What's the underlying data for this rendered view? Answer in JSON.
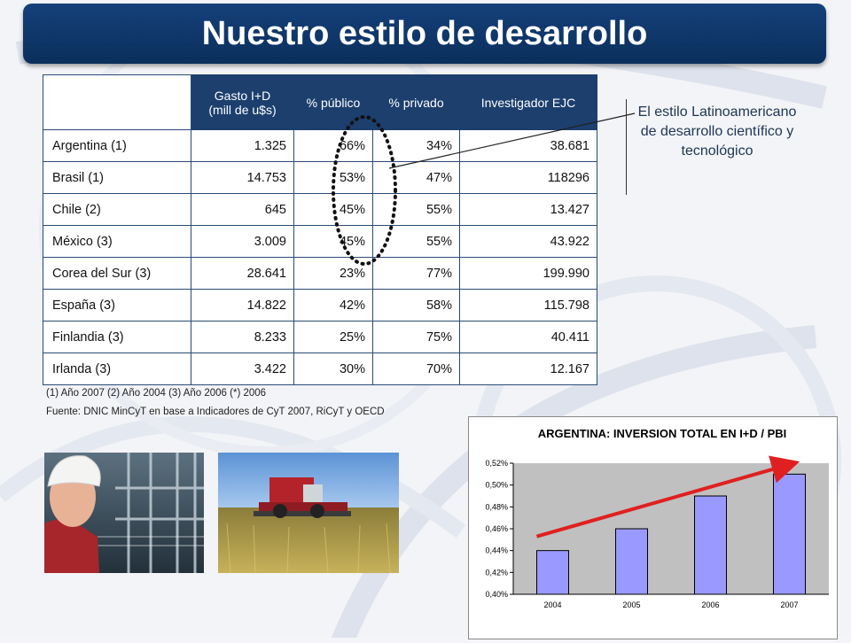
{
  "title": "Nuestro estilo de desarrollo",
  "table": {
    "headers": [
      "",
      "Gasto I+D\n(mill de u$s)",
      "% público",
      "% privado",
      "Investigador EJC"
    ],
    "rows": [
      [
        "Argentina (1)",
        "1.325",
        "66%",
        "34%",
        "38.681"
      ],
      [
        "Brasil (1)",
        "14.753",
        "53%",
        "47%",
        "118296"
      ],
      [
        "Chile (2)",
        "645",
        "45%",
        "55%",
        "13.427"
      ],
      [
        "México (3)",
        "3.009",
        "45%",
        "55%",
        "43.922"
      ],
      [
        "Corea del Sur (3)",
        "28.641",
        "23%",
        "77%",
        "199.990"
      ],
      [
        "España (3)",
        "14.822",
        "42%",
        "58%",
        "115.798"
      ],
      [
        "Finlandia (3)",
        "8.233",
        "25%",
        "75%",
        "40.411"
      ],
      [
        "Irlanda (3)",
        "3.422",
        "30%",
        "70%",
        "12.167"
      ]
    ]
  },
  "notes": {
    "years": "(1) Año 2007 (2) Año 2004 (3) Año 2006 (*) 2006",
    "source": "Fuente: DNIC MinCyT en base a Indicadores de CyT 2007, RiCyT y OECD"
  },
  "annotation": "El estilo Latinoamericano de desarrollo científico y tecnológico",
  "photos": {
    "left": "industrial-worker-photo",
    "right": "harvester-photo"
  },
  "colors": {
    "title_bg": "#0b2f5c",
    "header_bg": "#1c3f6e",
    "bar_fill": "#9999ff",
    "trend_arrow": "#e02020",
    "plot_bg": "#c0c0c0"
  },
  "chart_data": {
    "type": "bar",
    "title": "ARGENTINA: INVERSION TOTAL EN I+D / PBI",
    "categories": [
      "2004",
      "2005",
      "2006",
      "2007"
    ],
    "values": [
      0.44,
      0.46,
      0.49,
      0.51
    ],
    "ylim": [
      0.4,
      0.52
    ],
    "yticks": [
      "0,40%",
      "0,42%",
      "0,44%",
      "0,46%",
      "0,48%",
      "0,50%",
      "0,52%"
    ],
    "xlabel": "",
    "ylabel": "",
    "grid": false,
    "legend": "none",
    "annotation": "red upward trend arrow"
  }
}
